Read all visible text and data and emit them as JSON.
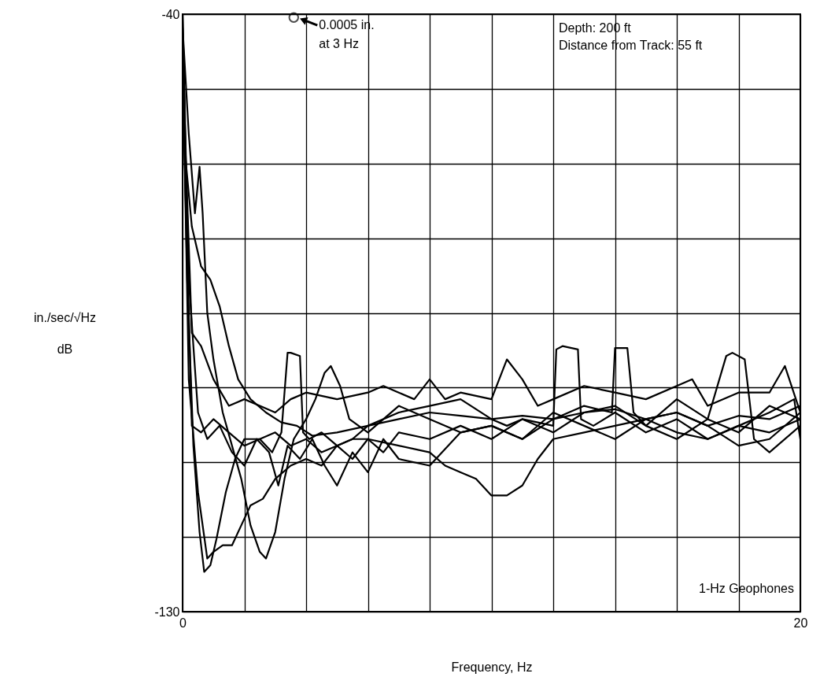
{
  "chart_data": {
    "type": "line",
    "xlabel": "Frequency, Hz",
    "ylabel": "in./sec/√Hz\ndB",
    "xlim": [
      0,
      20
    ],
    "ylim": [
      -130,
      -40
    ],
    "xticks": [
      0,
      {
        "value": 2,
        "label": null
      },
      {
        "value": 4,
        "label": null
      },
      {
        "value": 6,
        "label": null
      },
      {
        "value": 8,
        "label": null
      },
      {
        "value": 10,
        "label": null
      },
      {
        "value": 12,
        "label": null
      },
      {
        "value": 14,
        "label": null
      },
      {
        "value": 16,
        "label": null
      },
      {
        "value": 18,
        "label": null
      },
      20
    ],
    "yticks": [
      -130,
      {
        "value": -118.75,
        "label": null
      },
      {
        "value": -107.5,
        "label": null
      },
      {
        "value": -96.25,
        "label": null
      },
      {
        "value": -85,
        "label": null
      },
      {
        "value": -73.75,
        "label": null
      },
      {
        "value": -62.5,
        "label": null
      },
      {
        "value": -51.25,
        "label": null
      },
      -40
    ],
    "grid": true,
    "marker": "none",
    "line_style": "solid",
    "annotations": [
      {
        "text": "0.0005 in.\nat 3 Hz",
        "x": 3.6,
        "y": -40.5
      },
      "Depth:  200 ft\nDistance from Track:  55 ft",
      "1-Hz Geophones"
    ],
    "series": [
      {
        "color": "#000000",
        "x": [
          0,
          0.1,
          0.3,
          0.6,
          0.9,
          1.2,
          1.5,
          1.8,
          2.2,
          2.7,
          3.2,
          3.7,
          4.2,
          5,
          6,
          7,
          8,
          9,
          10,
          11,
          12,
          13,
          14,
          15,
          16,
          17,
          18,
          19,
          20
        ],
        "values": [
          -40,
          -62,
          -72,
          -78,
          -80,
          -84,
          -90,
          -95,
          -98,
          -100,
          -101.5,
          -102,
          -103.5,
          -103,
          -102,
          -101,
          -100,
          -100.5,
          -101,
          -100.5,
          -101,
          -100,
          -99.5,
          -101,
          -100,
          -102,
          -100.5,
          -101,
          -99
        ]
      },
      {
        "color": "#000000",
        "x": [
          0,
          0.15,
          0.35,
          0.55,
          0.7,
          0.9,
          1.1,
          1.4,
          1.7,
          2.0,
          2.5,
          2.9,
          3.2,
          3.4,
          3.5,
          3.8,
          3.9,
          4.1,
          4.5,
          5,
          5.5,
          6,
          7,
          8,
          9,
          10,
          10.5,
          11,
          12,
          12.1,
          12.3,
          12.8,
          12.9,
          13.3,
          14,
          15,
          16,
          17,
          18,
          19,
          19.8,
          20
        ],
        "values": [
          -45,
          -80,
          -105,
          -118,
          -124,
          -123,
          -119,
          -112,
          -107,
          -104,
          -104,
          -106,
          -103,
          -91,
          -91,
          -91.5,
          -103,
          -104,
          -103,
          -105,
          -104,
          -102,
          -100,
          -99,
          -98,
          -101,
          -102,
          -101,
          -102,
          -90.5,
          -90,
          -90.5,
          -101,
          -102,
          -100,
          -103,
          -101,
          -104,
          -102,
          -100,
          -98,
          -104
        ]
      },
      {
        "color": "#000000",
        "x": [
          0,
          0.2,
          0.4,
          0.55,
          0.65,
          0.8,
          1.0,
          1.3,
          1.6,
          1.9,
          2.2,
          2.5,
          2.7,
          3.0,
          3.3,
          3.6,
          4.0,
          4.3,
          4.6,
          4.8,
          5.1,
          5.4,
          6,
          7,
          8,
          9,
          10,
          11,
          12,
          13,
          13.9,
          14.0,
          14.4,
          14.6,
          15,
          16,
          17,
          18,
          19,
          20
        ],
        "values": [
          -42,
          -58,
          -70,
          -63,
          -70,
          -85,
          -92,
          -100,
          -105,
          -110,
          -117,
          -121,
          -122,
          -118,
          -110,
          -104,
          -101,
          -98,
          -94,
          -93,
          -96,
          -101,
          -103,
          -99,
          -101,
          -103,
          -102,
          -104,
          -101,
          -99,
          -100,
          -90.3,
          -90.3,
          -100,
          -102,
          -98,
          -101,
          -103,
          -99,
          -101
        ]
      },
      {
        "color": "#000000",
        "x": [
          0,
          0.3,
          0.6,
          1,
          1.5,
          2,
          2.5,
          3,
          3.5,
          4,
          4.5,
          5,
          5.5,
          6,
          7,
          8,
          8.5,
          9,
          9.5,
          10,
          10.5,
          11,
          11.5,
          12,
          13,
          14,
          15,
          16,
          17,
          18,
          19,
          20
        ],
        "values": [
          -50,
          -102,
          -103,
          -101,
          -103,
          -105,
          -104,
          -103,
          -105,
          -104,
          -106,
          -105,
          -104,
          -104,
          -105,
          -106,
          -108,
          -109,
          -110,
          -112.5,
          -112.5,
          -111,
          -107,
          -104,
          -103,
          -102,
          -101,
          -103,
          -104,
          -102,
          -103,
          -101
        ]
      },
      {
        "color": "#000000",
        "x": [
          0,
          0.2,
          0.5,
          0.8,
          1.0,
          1.3,
          1.6,
          1.9,
          2.2,
          2.6,
          3.0,
          3.5,
          4,
          4.5,
          5,
          5.5,
          6,
          6.5,
          7,
          8,
          9,
          10,
          11,
          12,
          13,
          14,
          15,
          16,
          17,
          17.6,
          17.8,
          18.2,
          18.5,
          19,
          20
        ],
        "values": [
          -45,
          -95,
          -112,
          -122,
          -121,
          -120,
          -120,
          -117,
          -114,
          -113,
          -110,
          -108,
          -107,
          -108,
          -105,
          -107,
          -104,
          -106,
          -103,
          -104,
          -102,
          -104,
          -101,
          -103,
          -100,
          -99,
          -102,
          -104,
          -101,
          -91.5,
          -91,
          -92,
          -104,
          -106,
          -102
        ]
      },
      {
        "color": "#000000",
        "x": [
          0,
          0.3,
          0.6,
          1,
          1.5,
          2,
          2.5,
          3,
          3.5,
          4,
          5,
          6,
          6.5,
          7,
          7.5,
          8,
          8.5,
          9,
          10,
          10.5,
          11,
          11.5,
          12,
          13,
          14,
          15,
          16,
          16.5,
          17,
          18,
          19,
          19.5,
          20
        ],
        "values": [
          -48,
          -88,
          -90,
          -95,
          -99,
          -98,
          -99,
          -100,
          -98,
          -97,
          -98,
          -97,
          -96,
          -97,
          -98,
          -95,
          -98,
          -97,
          -98,
          -92,
          -95,
          -99,
          -98,
          -96,
          -97,
          -98,
          -96,
          -95,
          -99,
          -97,
          -97,
          -93,
          -100
        ]
      },
      {
        "color": "#000000",
        "x": [
          0,
          0.2,
          0.5,
          0.8,
          1.2,
          1.6,
          2.0,
          2.4,
          2.8,
          3.1,
          3.4,
          3.8,
          4.2,
          4.6,
          5.0,
          5.5,
          6.0,
          6.5,
          7,
          8,
          9,
          10,
          11,
          12,
          13,
          14,
          15,
          16,
          17,
          18,
          19,
          20
        ],
        "values": [
          -40,
          -80,
          -100,
          -104,
          -102,
          -106,
          -108,
          -104,
          -106,
          -111,
          -105,
          -107,
          -104,
          -108,
          -111,
          -106,
          -109,
          -104,
          -107,
          -108,
          -103,
          -102,
          -104,
          -100,
          -102,
          -104,
          -101,
          -100,
          -102,
          -105,
          -104,
          -100
        ]
      }
    ]
  }
}
